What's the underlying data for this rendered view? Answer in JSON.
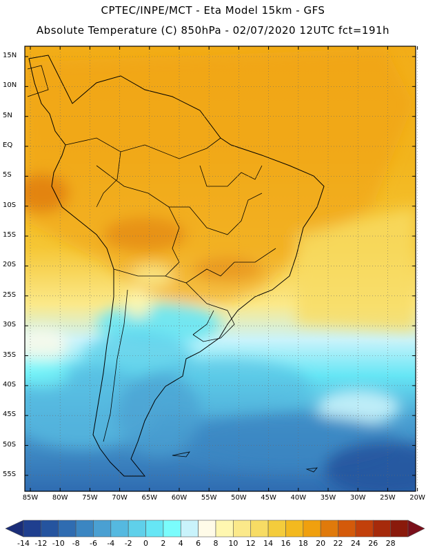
{
  "header": {
    "line1": "CPTEC/INPE/MCT -  Eta Model 15km - GFS",
    "line2": "Absolute Temperature (C) 850hPa - 02/07/2020 12UTC fct=191h"
  },
  "map": {
    "lat_labels": [
      "15N",
      "10N",
      "5N",
      "EQ",
      "5S",
      "10S",
      "15S",
      "20S",
      "25S",
      "30S",
      "35S",
      "40S",
      "45S",
      "50S",
      "55S"
    ],
    "lon_labels": [
      "85W",
      "80W",
      "75W",
      "70W",
      "65W",
      "60W",
      "55W",
      "50W",
      "45W",
      "40W",
      "35W",
      "30W",
      "25W",
      "20W"
    ]
  },
  "colorbar": {
    "labels": [
      "-14",
      "-12",
      "-10",
      "-8",
      "-6",
      "-4",
      "-2",
      "0",
      "2",
      "4",
      "6",
      "8",
      "10",
      "12",
      "14",
      "16",
      "18",
      "20",
      "22",
      "24",
      "26",
      "28"
    ],
    "colors": [
      "#1f3f8f",
      "#25549f",
      "#2f6cb1",
      "#3b86c2",
      "#4aa0d2",
      "#55b9e0",
      "#5fd0ea",
      "#66e6f5",
      "#7afcfc",
      "#c9f3fb",
      "#fffbe8",
      "#fff7b0",
      "#fbe98a",
      "#f7dc64",
      "#f4cc3c",
      "#f3b91f",
      "#f0a00e",
      "#e07a0b",
      "#d45a0a",
      "#c2400b",
      "#a62a0b",
      "#8a1a0b"
    ],
    "underflow_color": "#1a2d78",
    "overflow_color": "#7a0f1a"
  }
}
